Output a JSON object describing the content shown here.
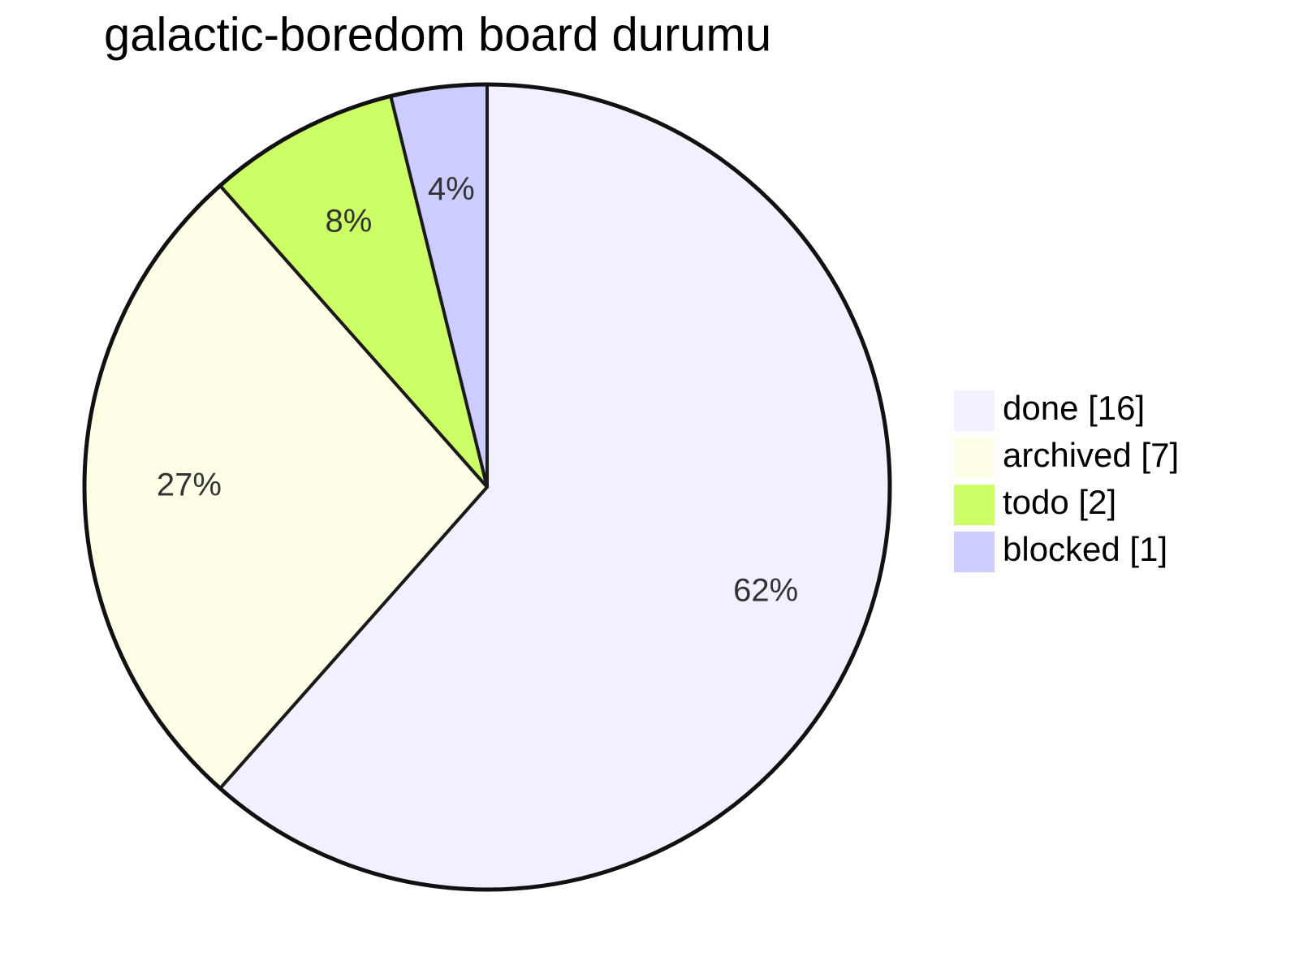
{
  "chart_data": {
    "type": "pie",
    "title": "galactic-boredom board durumu",
    "categories": [
      "done",
      "archived",
      "todo",
      "blocked"
    ],
    "legend_labels": [
      "done [16]",
      "archived [7]",
      "todo [2]",
      "blocked [1]"
    ],
    "values": [
      16,
      7,
      2,
      1
    ],
    "value_labels": [
      "62%",
      "27%",
      "8%",
      "4%"
    ],
    "colors": [
      "#f0f0ff",
      "#ffffe8",
      "#ccff66",
      "#ccccff"
    ],
    "legend": "right"
  }
}
